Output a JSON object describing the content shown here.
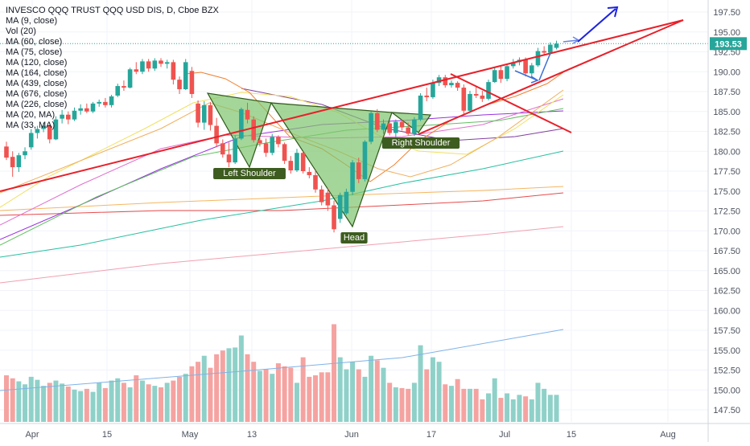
{
  "header": {
    "title": "INVESCO QQQ TRUST QQQ USD DIS, D, Cboe BZX",
    "indicators": [
      "MA (9, close)",
      "Vol (20)",
      "MA (60, close)",
      "MA (75, close)",
      "MA (120, close)",
      "MA (164, close)",
      "MA (439, close)",
      "MA (676, close)",
      "MA (226, close)",
      "MA (20, MA)",
      "MA (33, MA)"
    ]
  },
  "price_badge": "193.53",
  "annotations": {
    "left_shoulder": "Left Shoulder",
    "head": "Head",
    "right_shoulder": "Right Shoulder"
  },
  "colors": {
    "up": "#26a69a",
    "down": "#ef5350",
    "trendline": "#e8202a",
    "arrow": "#1d23e0",
    "pattern_fill": "#7fc46e",
    "label_bg": "#3d5c1f",
    "price_line": "#26a69a",
    "grid": "#f0f3fa"
  },
  "chart_data": {
    "type": "candlestick",
    "title": "INVESCO QQQ TRUST QQQ USD DIS, D, Cboe BZX",
    "y_axis": {
      "range": [
        146,
        199
      ],
      "ticks": [
        "147.50",
        "150.00",
        "152.50",
        "155.00",
        "157.50",
        "160.00",
        "162.50",
        "165.00",
        "167.50",
        "170.00",
        "172.50",
        "175.00",
        "177.50",
        "180.00",
        "182.50",
        "185.00",
        "187.50",
        "190.00",
        "192.50",
        "195.00",
        "197.50"
      ]
    },
    "x_axis": {
      "start_date": "Apr",
      "ticks": [
        "Apr",
        "15",
        "May",
        "13",
        "Jun",
        "17",
        "Jul",
        "15",
        "Aug"
      ]
    },
    "last_price": 193.53,
    "candles": [
      {
        "o": 180.6,
        "h": 181.2,
        "l": 178.9,
        "c": 179.2
      },
      {
        "o": 179.3,
        "h": 180.0,
        "l": 176.8,
        "c": 178.0
      },
      {
        "o": 178.0,
        "h": 179.8,
        "l": 177.4,
        "c": 179.5
      },
      {
        "o": 179.5,
        "h": 180.5,
        "l": 179.0,
        "c": 180.0
      },
      {
        "o": 180.5,
        "h": 182.8,
        "l": 180.2,
        "c": 182.3
      },
      {
        "o": 182.3,
        "h": 183.2,
        "l": 181.6,
        "c": 182.8
      },
      {
        "o": 182.8,
        "h": 183.6,
        "l": 182.4,
        "c": 183.2
      },
      {
        "o": 183.2,
        "h": 183.5,
        "l": 181.0,
        "c": 181.5
      },
      {
        "o": 181.5,
        "h": 184.4,
        "l": 181.4,
        "c": 184.0
      },
      {
        "o": 184.1,
        "h": 185.2,
        "l": 183.5,
        "c": 184.6
      },
      {
        "o": 184.6,
        "h": 185.0,
        "l": 183.4,
        "c": 184.0
      },
      {
        "o": 184.0,
        "h": 185.5,
        "l": 183.8,
        "c": 185.1
      },
      {
        "o": 185.1,
        "h": 185.9,
        "l": 184.6,
        "c": 185.4
      },
      {
        "o": 185.4,
        "h": 186.0,
        "l": 184.8,
        "c": 185.0
      },
      {
        "o": 185.0,
        "h": 186.2,
        "l": 184.8,
        "c": 186.0
      },
      {
        "o": 186.0,
        "h": 186.5,
        "l": 185.6,
        "c": 186.2
      },
      {
        "o": 186.2,
        "h": 186.7,
        "l": 185.5,
        "c": 185.8
      },
      {
        "o": 185.8,
        "h": 187.1,
        "l": 185.5,
        "c": 186.9
      },
      {
        "o": 187.0,
        "h": 188.5,
        "l": 186.8,
        "c": 188.2
      },
      {
        "o": 188.2,
        "h": 188.9,
        "l": 187.6,
        "c": 188.0
      },
      {
        "o": 188.0,
        "h": 190.5,
        "l": 187.9,
        "c": 190.3
      },
      {
        "o": 190.3,
        "h": 191.2,
        "l": 189.7,
        "c": 190.0
      },
      {
        "o": 190.0,
        "h": 191.6,
        "l": 189.7,
        "c": 191.3
      },
      {
        "o": 191.3,
        "h": 191.6,
        "l": 190.0,
        "c": 190.4
      },
      {
        "o": 190.4,
        "h": 191.7,
        "l": 190.1,
        "c": 191.4
      },
      {
        "o": 191.4,
        "h": 191.7,
        "l": 190.6,
        "c": 191.0
      },
      {
        "o": 191.0,
        "h": 191.5,
        "l": 190.4,
        "c": 191.2
      },
      {
        "o": 191.2,
        "h": 191.5,
        "l": 188.4,
        "c": 189.0
      },
      {
        "o": 189.0,
        "h": 189.4,
        "l": 187.2,
        "c": 187.8
      },
      {
        "o": 187.8,
        "h": 191.6,
        "l": 187.7,
        "c": 191.2
      },
      {
        "o": 190.1,
        "h": 190.6,
        "l": 186.7,
        "c": 187.2
      },
      {
        "o": 186.0,
        "h": 186.4,
        "l": 183.0,
        "c": 183.6
      },
      {
        "o": 183.6,
        "h": 186.3,
        "l": 182.7,
        "c": 185.8
      },
      {
        "o": 185.8,
        "h": 186.2,
        "l": 182.6,
        "c": 183.3
      },
      {
        "o": 183.2,
        "h": 184.2,
        "l": 180.5,
        "c": 181.0
      },
      {
        "o": 181.0,
        "h": 181.5,
        "l": 179.2,
        "c": 179.6
      },
      {
        "o": 179.6,
        "h": 181.1,
        "l": 178.0,
        "c": 178.6
      },
      {
        "o": 178.6,
        "h": 182.0,
        "l": 178.4,
        "c": 181.6
      },
      {
        "o": 181.6,
        "h": 185.5,
        "l": 181.4,
        "c": 185.3
      },
      {
        "o": 185.2,
        "h": 186.1,
        "l": 183.5,
        "c": 184.0
      },
      {
        "o": 184.0,
        "h": 184.4,
        "l": 181.1,
        "c": 181.4
      },
      {
        "o": 181.4,
        "h": 181.8,
        "l": 180.6,
        "c": 181.0
      },
      {
        "o": 181.0,
        "h": 181.6,
        "l": 179.3,
        "c": 179.8
      },
      {
        "o": 179.8,
        "h": 182.2,
        "l": 179.5,
        "c": 181.8
      },
      {
        "o": 181.8,
        "h": 182.0,
        "l": 180.5,
        "c": 180.9
      },
      {
        "o": 180.9,
        "h": 181.1,
        "l": 178.4,
        "c": 178.8
      },
      {
        "o": 178.8,
        "h": 179.4,
        "l": 177.2,
        "c": 177.6
      },
      {
        "o": 177.6,
        "h": 180.3,
        "l": 177.4,
        "c": 179.8
      },
      {
        "o": 179.8,
        "h": 180.0,
        "l": 177.2,
        "c": 177.5
      },
      {
        "o": 177.4,
        "h": 178.0,
        "l": 176.6,
        "c": 177.0
      },
      {
        "o": 177.0,
        "h": 177.6,
        "l": 174.8,
        "c": 175.2
      },
      {
        "o": 175.2,
        "h": 175.7,
        "l": 173.2,
        "c": 173.6
      },
      {
        "o": 174.8,
        "h": 175.4,
        "l": 172.5,
        "c": 173.2
      },
      {
        "o": 173.2,
        "h": 173.8,
        "l": 169.8,
        "c": 170.2
      },
      {
        "o": 171.5,
        "h": 174.8,
        "l": 171.0,
        "c": 174.5
      },
      {
        "o": 172.2,
        "h": 175.3,
        "l": 172.0,
        "c": 174.9
      },
      {
        "o": 174.9,
        "h": 178.9,
        "l": 174.5,
        "c": 178.6
      },
      {
        "o": 178.6,
        "h": 179.2,
        "l": 176.0,
        "c": 176.5
      },
      {
        "o": 176.5,
        "h": 181.4,
        "l": 176.2,
        "c": 181.2
      },
      {
        "o": 181.2,
        "h": 185.0,
        "l": 180.9,
        "c": 184.8
      },
      {
        "o": 184.8,
        "h": 185.3,
        "l": 182.4,
        "c": 182.7
      },
      {
        "o": 182.7,
        "h": 184.0,
        "l": 182.2,
        "c": 183.5
      },
      {
        "o": 183.5,
        "h": 183.8,
        "l": 182.0,
        "c": 182.3
      },
      {
        "o": 182.3,
        "h": 184.0,
        "l": 181.6,
        "c": 183.7
      },
      {
        "o": 183.7,
        "h": 184.0,
        "l": 182.6,
        "c": 183.0
      },
      {
        "o": 183.0,
        "h": 183.6,
        "l": 182.0,
        "c": 182.2
      },
      {
        "o": 182.2,
        "h": 184.3,
        "l": 181.9,
        "c": 184.0
      },
      {
        "o": 184.0,
        "h": 187.3,
        "l": 183.8,
        "c": 187.0
      },
      {
        "o": 187.0,
        "h": 188.0,
        "l": 186.3,
        "c": 186.8
      },
      {
        "o": 186.8,
        "h": 189.0,
        "l": 186.6,
        "c": 188.6
      },
      {
        "o": 188.6,
        "h": 189.6,
        "l": 188.2,
        "c": 189.3
      },
      {
        "o": 189.3,
        "h": 189.6,
        "l": 188.0,
        "c": 188.3
      },
      {
        "o": 188.3,
        "h": 188.9,
        "l": 188.0,
        "c": 188.6
      },
      {
        "o": 188.6,
        "h": 188.8,
        "l": 187.6,
        "c": 188.0
      },
      {
        "o": 188.0,
        "h": 188.4,
        "l": 184.6,
        "c": 185.1
      },
      {
        "o": 185.1,
        "h": 187.6,
        "l": 185.0,
        "c": 187.2
      },
      {
        "o": 187.2,
        "h": 188.2,
        "l": 186.7,
        "c": 187.0
      },
      {
        "o": 187.0,
        "h": 187.6,
        "l": 186.2,
        "c": 186.6
      },
      {
        "o": 186.6,
        "h": 189.0,
        "l": 186.4,
        "c": 188.7
      },
      {
        "o": 188.7,
        "h": 190.6,
        "l": 188.6,
        "c": 190.2
      },
      {
        "o": 190.2,
        "h": 190.8,
        "l": 188.6,
        "c": 189.1
      },
      {
        "o": 189.1,
        "h": 191.0,
        "l": 188.8,
        "c": 190.7
      },
      {
        "o": 190.7,
        "h": 191.6,
        "l": 190.4,
        "c": 191.2
      },
      {
        "o": 191.2,
        "h": 191.8,
        "l": 190.8,
        "c": 191.5
      },
      {
        "o": 191.5,
        "h": 191.8,
        "l": 189.4,
        "c": 189.8
      },
      {
        "o": 189.8,
        "h": 191.1,
        "l": 189.3,
        "c": 190.8
      },
      {
        "o": 190.8,
        "h": 193.0,
        "l": 190.6,
        "c": 192.6
      },
      {
        "o": 192.6,
        "h": 193.2,
        "l": 192.0,
        "c": 192.4
      },
      {
        "o": 192.4,
        "h": 193.7,
        "l": 192.1,
        "c": 193.4
      },
      {
        "o": 193.0,
        "h": 193.9,
        "l": 192.8,
        "c": 193.53
      }
    ],
    "volume": [
      {
        "v": 0.62,
        "up": false
      },
      {
        "v": 0.58,
        "up": false
      },
      {
        "v": 0.54,
        "up": true
      },
      {
        "v": 0.5,
        "up": true
      },
      {
        "v": 0.6,
        "up": true
      },
      {
        "v": 0.56,
        "up": true
      },
      {
        "v": 0.48,
        "up": true
      },
      {
        "v": 0.52,
        "up": false
      },
      {
        "v": 0.55,
        "up": true
      },
      {
        "v": 0.51,
        "up": true
      },
      {
        "v": 0.47,
        "up": false
      },
      {
        "v": 0.43,
        "up": true
      },
      {
        "v": 0.41,
        "up": true
      },
      {
        "v": 0.44,
        "up": false
      },
      {
        "v": 0.4,
        "up": true
      },
      {
        "v": 0.52,
        "up": true
      },
      {
        "v": 0.45,
        "up": false
      },
      {
        "v": 0.55,
        "up": true
      },
      {
        "v": 0.58,
        "up": true
      },
      {
        "v": 0.52,
        "up": false
      },
      {
        "v": 0.46,
        "up": true
      },
      {
        "v": 0.62,
        "up": false
      },
      {
        "v": 0.55,
        "up": true
      },
      {
        "v": 0.5,
        "up": false
      },
      {
        "v": 0.48,
        "up": true
      },
      {
        "v": 0.46,
        "up": false
      },
      {
        "v": 0.52,
        "up": true
      },
      {
        "v": 0.55,
        "up": false
      },
      {
        "v": 0.6,
        "up": false
      },
      {
        "v": 0.64,
        "up": true
      },
      {
        "v": 0.74,
        "up": false
      },
      {
        "v": 0.8,
        "up": false
      },
      {
        "v": 0.88,
        "up": true
      },
      {
        "v": 0.72,
        "up": false
      },
      {
        "v": 0.9,
        "up": false
      },
      {
        "v": 0.95,
        "up": false
      },
      {
        "v": 0.98,
        "up": true
      },
      {
        "v": 0.99,
        "up": true
      },
      {
        "v": 1.15,
        "up": true
      },
      {
        "v": 0.9,
        "up": false
      },
      {
        "v": 0.8,
        "up": false
      },
      {
        "v": 0.68,
        "up": true
      },
      {
        "v": 0.7,
        "up": false
      },
      {
        "v": 0.64,
        "up": true
      },
      {
        "v": 0.78,
        "up": false
      },
      {
        "v": 0.74,
        "up": false
      },
      {
        "v": 0.72,
        "up": false
      },
      {
        "v": 0.52,
        "up": true
      },
      {
        "v": 0.86,
        "up": false
      },
      {
        "v": 0.6,
        "up": false
      },
      {
        "v": 0.62,
        "up": false
      },
      {
        "v": 0.66,
        "up": false
      },
      {
        "v": 0.66,
        "up": false
      },
      {
        "v": 1.3,
        "up": false
      },
      {
        "v": 0.86,
        "up": true
      },
      {
        "v": 0.7,
        "up": true
      },
      {
        "v": 0.8,
        "up": true
      },
      {
        "v": 0.7,
        "up": false
      },
      {
        "v": 0.6,
        "up": true
      },
      {
        "v": 0.88,
        "up": true
      },
      {
        "v": 0.82,
        "up": false
      },
      {
        "v": 0.72,
        "up": true
      },
      {
        "v": 0.52,
        "up": false
      },
      {
        "v": 0.46,
        "up": true
      },
      {
        "v": 0.45,
        "up": false
      },
      {
        "v": 0.44,
        "up": false
      },
      {
        "v": 0.52,
        "up": true
      },
      {
        "v": 1.02,
        "up": true
      },
      {
        "v": 0.7,
        "up": false
      },
      {
        "v": 0.86,
        "up": true
      },
      {
        "v": 0.8,
        "up": true
      },
      {
        "v": 0.5,
        "up": false
      },
      {
        "v": 0.48,
        "up": true
      },
      {
        "v": 0.57,
        "up": false
      },
      {
        "v": 0.44,
        "up": false
      },
      {
        "v": 0.44,
        "up": true
      },
      {
        "v": 0.44,
        "up": false
      },
      {
        "v": 0.3,
        "up": false
      },
      {
        "v": 0.38,
        "up": true
      },
      {
        "v": 0.58,
        "up": true
      },
      {
        "v": 0.32,
        "up": false
      },
      {
        "v": 0.38,
        "up": true
      },
      {
        "v": 0.3,
        "up": true
      },
      {
        "v": 0.36,
        "up": true
      },
      {
        "v": 0.34,
        "up": false
      },
      {
        "v": 0.3,
        "up": true
      },
      {
        "v": 0.52,
        "up": true
      },
      {
        "v": 0.44,
        "up": true
      },
      {
        "v": 0.36,
        "up": true
      },
      {
        "v": 0.36,
        "up": true
      }
    ]
  }
}
